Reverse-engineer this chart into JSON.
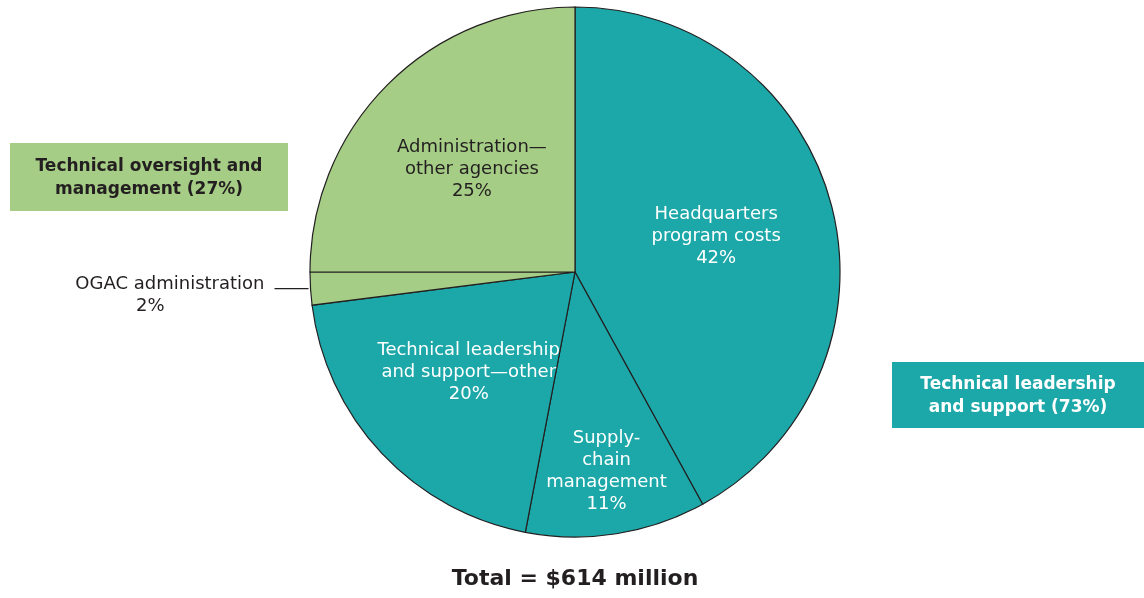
{
  "chart_data": {
    "type": "pie",
    "title": "Total = $614 million",
    "categories": [
      "Headquarters\nprogram costs",
      "Supply-\nchain\nmanagement",
      "Technical leadership\nand support—other",
      "OGAC administration",
      "Administration—\nother agencies"
    ],
    "values": [
      42,
      11,
      20,
      2,
      25
    ],
    "colors": [
      "#1ca7a8",
      "#1ca7a8",
      "#1ca7a8",
      "#a5cd85",
      "#a5cd85"
    ],
    "value_labels": [
      "42%",
      "11%",
      "20%",
      "2%",
      "25%"
    ],
    "annotations": [
      "Technical oversight and\nmanagement (27%)",
      "Technical leadership\nand support (73%)"
    ]
  }
}
